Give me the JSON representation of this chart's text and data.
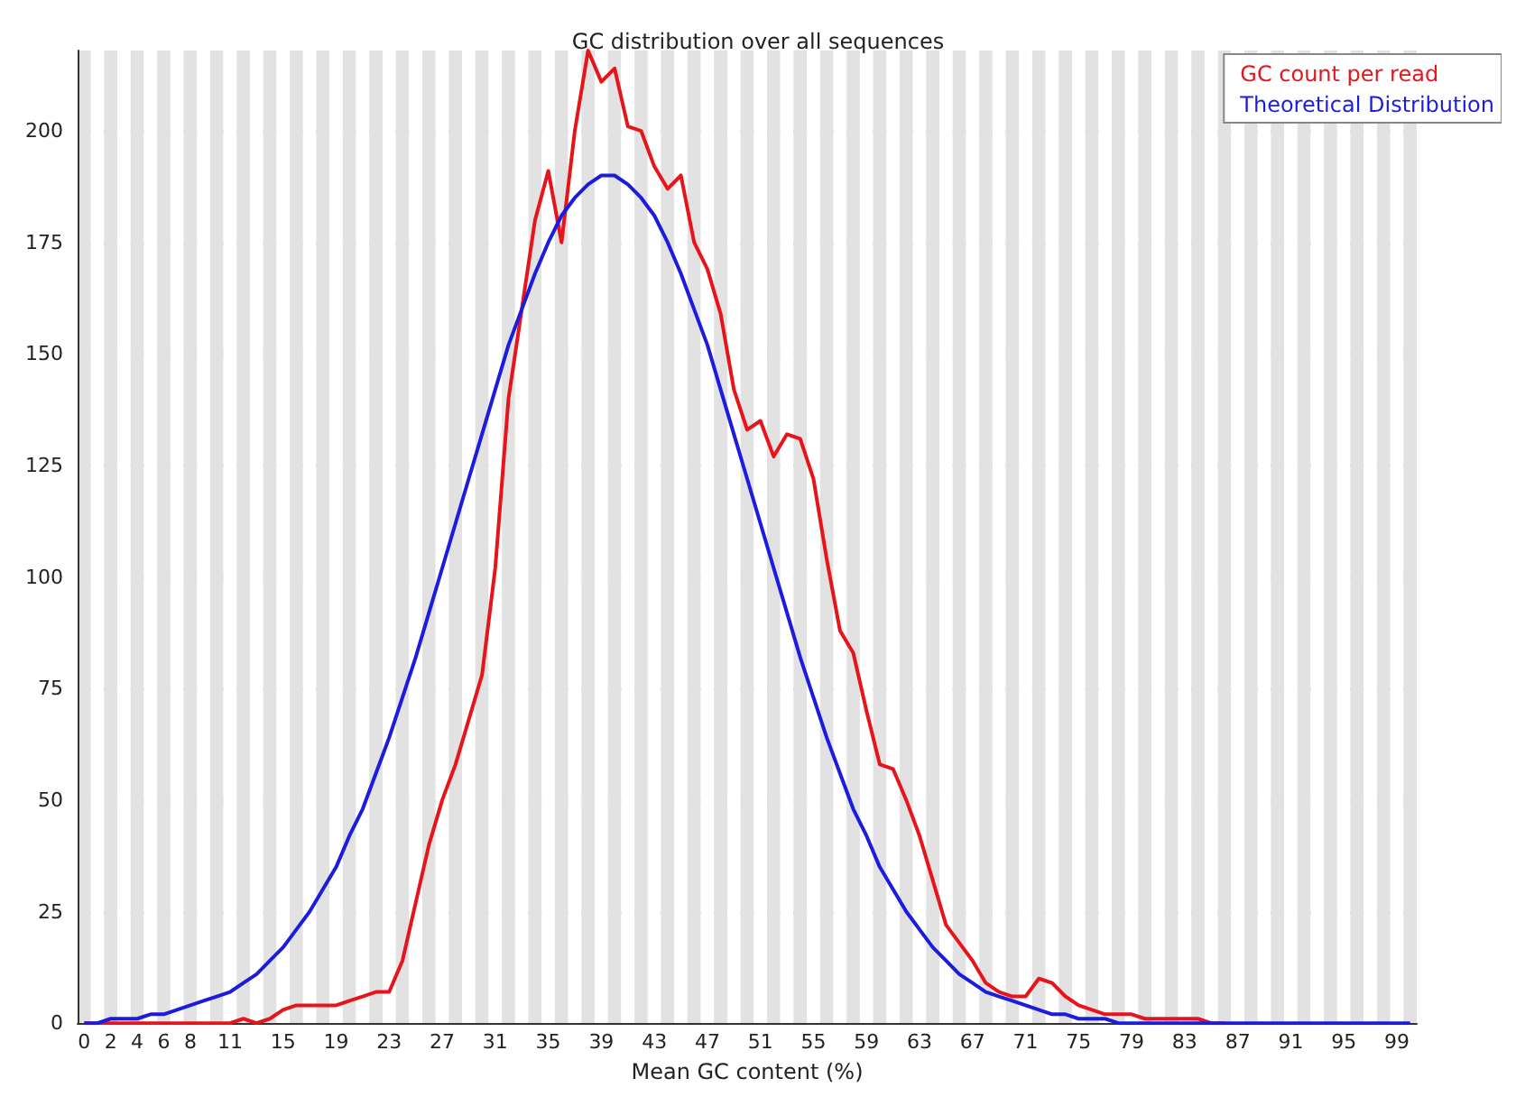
{
  "chart_data": {
    "type": "line",
    "title": "GC distribution over all sequences",
    "xlabel": "Mean GC content (%)",
    "categories": [
      "0",
      null,
      "2",
      null,
      "4",
      null,
      "6",
      null,
      "8",
      null,
      null,
      "11",
      null,
      null,
      null,
      "15",
      null,
      null,
      null,
      "19",
      null,
      null,
      null,
      "23",
      null,
      null,
      null,
      "27",
      null,
      null,
      null,
      "31",
      null,
      null,
      null,
      "35",
      null,
      null,
      null,
      "39",
      null,
      null,
      null,
      "43",
      null,
      null,
      null,
      "47",
      null,
      null,
      null,
      "51",
      null,
      null,
      null,
      "55",
      null,
      null,
      null,
      "59",
      null,
      null,
      null,
      "63",
      null,
      null,
      null,
      "67",
      null,
      null,
      null,
      "71",
      null,
      null,
      null,
      "75",
      null,
      null,
      null,
      "79",
      null,
      null,
      null,
      "83",
      null,
      null,
      null,
      "87",
      null,
      null,
      null,
      "91",
      null,
      null,
      null,
      "95",
      null,
      null,
      null,
      "99",
      null
    ],
    "series": [
      {
        "name": "GC count per read",
        "color": "#e8141c",
        "values": [
          0,
          0,
          0,
          0,
          0,
          0,
          0,
          0,
          0,
          0,
          0,
          0,
          1,
          0,
          1,
          3,
          4,
          4,
          4,
          4,
          5,
          6,
          7,
          7,
          14,
          27,
          40,
          50,
          58,
          68,
          78,
          102,
          140,
          160,
          180,
          191,
          175,
          200,
          218,
          211,
          214,
          201,
          200,
          192,
          187,
          190,
          175,
          169,
          159,
          142,
          133,
          135,
          127,
          132,
          131,
          122,
          104,
          88,
          83,
          70,
          58,
          57,
          50,
          42,
          32,
          22,
          18,
          14,
          9,
          7,
          6,
          6,
          10,
          9,
          6,
          4,
          3,
          2,
          2,
          2,
          1,
          1,
          1,
          1,
          1,
          0,
          0,
          null,
          null,
          null,
          null,
          null,
          null,
          null,
          null,
          null,
          null,
          null,
          null,
          null,
          null
        ]
      },
      {
        "name": "Theoretical Distribution",
        "color": "#1c1ce0",
        "values": [
          0,
          0,
          1,
          1,
          1,
          2,
          2,
          3,
          4,
          5,
          6,
          7,
          9,
          11,
          14,
          17,
          21,
          25,
          30,
          35,
          42,
          48,
          56,
          64,
          73,
          82,
          92,
          102,
          112,
          122,
          132,
          142,
          152,
          160,
          168,
          175,
          181,
          185,
          188,
          190,
          190,
          188,
          185,
          181,
          175,
          168,
          160,
          152,
          142,
          132,
          122,
          112,
          102,
          92,
          82,
          73,
          64,
          56,
          48,
          42,
          35,
          30,
          25,
          21,
          17,
          14,
          11,
          9,
          7,
          6,
          5,
          4,
          3,
          2,
          2,
          1,
          1,
          1,
          0,
          0,
          0,
          0,
          0,
          0,
          0,
          0,
          0,
          0,
          0,
          0,
          0,
          0,
          0,
          0,
          0,
          0,
          0,
          0,
          0,
          0,
          0
        ]
      }
    ],
    "ylim": [
      0,
      218
    ],
    "yticks": [
      0,
      25,
      50,
      75,
      100,
      125,
      150,
      175,
      200
    ],
    "grid": "y",
    "legend": "top right",
    "marker": "none",
    "line_style": "solid"
  }
}
